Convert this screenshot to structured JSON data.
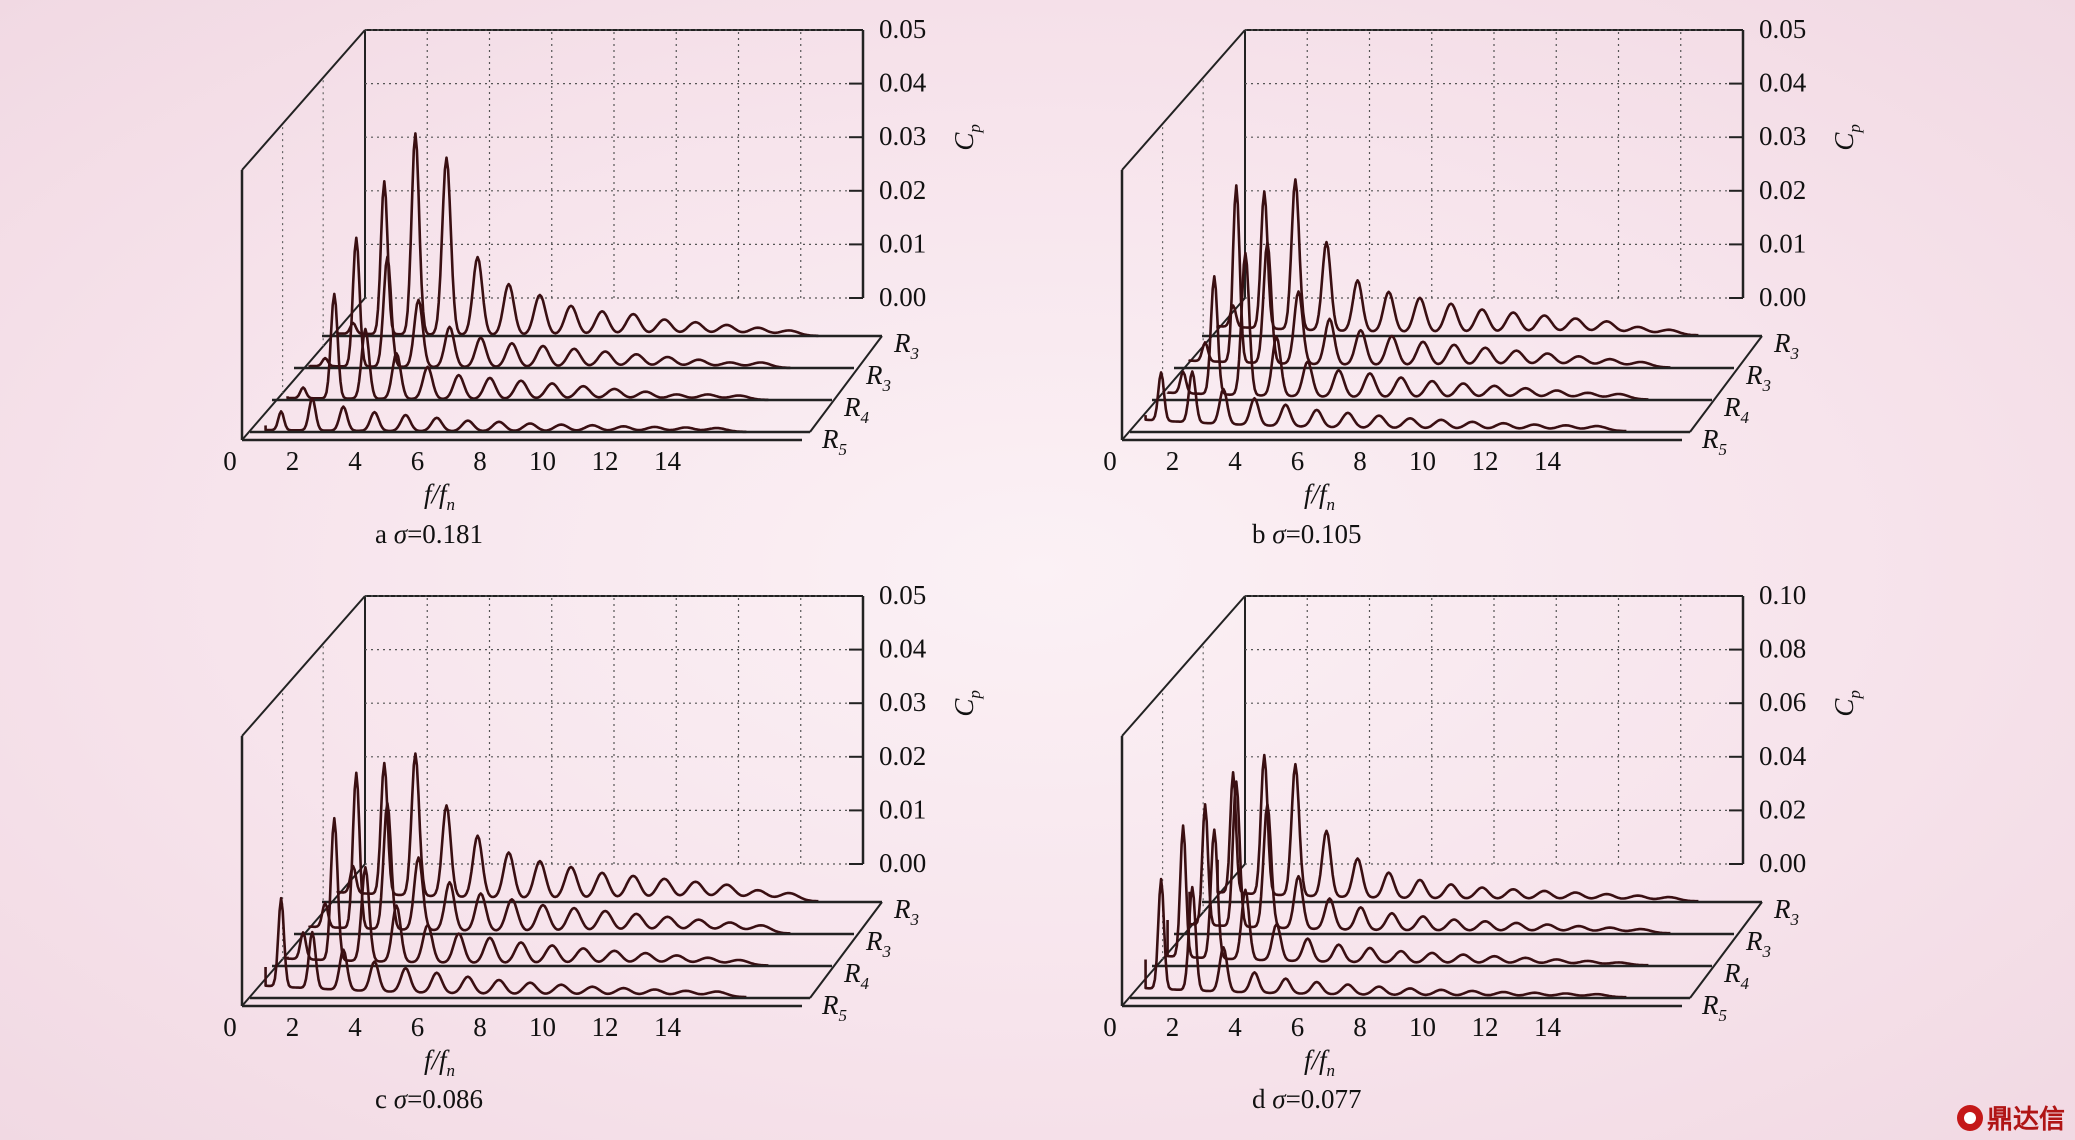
{
  "figure": {
    "watermark": "鼎达信"
  },
  "chart_data": [
    {
      "type": "line",
      "panel": "a",
      "caption_letter": "a",
      "caption_sigma": "σ=0.181",
      "xlabel": "f/f_n",
      "xlabel_main": "f/f",
      "xlabel_sub": "n",
      "ylabel": "C_p",
      "ylabel_main": "C",
      "ylabel_sub": "p",
      "x_ticks": [
        "0",
        "2",
        "4",
        "6",
        "8",
        "10",
        "12",
        "14"
      ],
      "y_ticks": [
        "0.00",
        "0.01",
        "0.02",
        "0.03",
        "0.04",
        "0.05"
      ],
      "ylim": [
        0,
        0.05
      ],
      "xlim": [
        0,
        16
      ],
      "series": [
        {
          "name": "R3",
          "label_main": "R",
          "label_sub": "3",
          "harmonics": [
            1,
            2,
            3,
            4,
            5,
            6,
            7,
            8,
            9,
            10,
            11,
            12,
            13,
            14,
            15
          ],
          "amplitudes": [
            0.002,
            0.0285,
            0.0375,
            0.033,
            0.0145,
            0.0095,
            0.0075,
            0.0055,
            0.0045,
            0.004,
            0.003,
            0.0025,
            0.002,
            0.0015,
            0.001
          ],
          "broadband": 0.0005
        },
        {
          "name": "R3",
          "label_main": "R",
          "label_sub": "3",
          "harmonics": [
            1,
            2,
            3,
            4,
            5,
            6,
            7,
            8,
            9,
            10,
            11,
            12,
            13,
            14,
            15
          ],
          "amplitudes": [
            0.0015,
            0.024,
            0.0205,
            0.0125,
            0.0075,
            0.0055,
            0.0045,
            0.004,
            0.0035,
            0.003,
            0.0025,
            0.002,
            0.0015,
            0.001,
            0.001
          ],
          "broadband": 0.0004
        },
        {
          "name": "R4",
          "label_main": "R",
          "label_sub": "4",
          "harmonics": [
            1,
            2,
            3,
            4,
            5,
            6,
            7,
            8,
            9,
            10,
            11,
            12,
            13,
            14,
            15
          ],
          "amplitudes": [
            0.002,
            0.0195,
            0.013,
            0.0085,
            0.006,
            0.0045,
            0.004,
            0.0035,
            0.003,
            0.0025,
            0.002,
            0.0015,
            0.001,
            0.001,
            0.0008
          ],
          "broadband": 0.0004
        },
        {
          "name": "R5",
          "label_main": "R",
          "label_sub": "5",
          "harmonics": [
            1,
            2,
            3,
            4,
            5,
            6,
            7,
            8,
            9,
            10,
            11,
            12,
            13,
            14,
            15
          ],
          "amplitudes": [
            0.0035,
            0.006,
            0.0045,
            0.0035,
            0.003,
            0.0025,
            0.002,
            0.0018,
            0.0015,
            0.0013,
            0.0012,
            0.001,
            0.0009,
            0.0008,
            0.0007
          ],
          "broadband": 0.0004
        }
      ]
    },
    {
      "type": "line",
      "panel": "b",
      "caption_letter": "b",
      "caption_sigma": "σ=0.105",
      "xlabel": "f/f_n",
      "xlabel_main": "f/f",
      "xlabel_sub": "n",
      "ylabel": "C_p",
      "ylabel_main": "C",
      "ylabel_sub": "p",
      "x_ticks": [
        "0",
        "2",
        "4",
        "6",
        "8",
        "10",
        "12",
        "14"
      ],
      "y_ticks": [
        "0.00",
        "0.01",
        "0.02",
        "0.03",
        "0.04",
        "0.05"
      ],
      "ylim": [
        0,
        0.05
      ],
      "xlim": [
        0,
        16
      ],
      "series": [
        {
          "name": "R3",
          "label_main": "R",
          "label_sub": "3",
          "harmonics": [
            1,
            2,
            3,
            4,
            5,
            6,
            7,
            8,
            9,
            10,
            11,
            12,
            13,
            14,
            15
          ],
          "amplitudes": [
            0.004,
            0.0255,
            0.028,
            0.0165,
            0.0095,
            0.0075,
            0.0065,
            0.0055,
            0.0045,
            0.004,
            0.0035,
            0.003,
            0.0025,
            0.0015,
            0.001
          ],
          "broadband": 0.002
        },
        {
          "name": "R3",
          "label_main": "R",
          "label_sub": "3",
          "harmonics": [
            1,
            2,
            3,
            4,
            5,
            6,
            7,
            8,
            9,
            10,
            11,
            12,
            13,
            14,
            15
          ],
          "amplitudes": [
            0.0035,
            0.033,
            0.0225,
            0.0135,
            0.0085,
            0.0065,
            0.0055,
            0.0045,
            0.004,
            0.0035,
            0.003,
            0.0025,
            0.002,
            0.0015,
            0.001
          ],
          "broadband": 0.0015
        },
        {
          "name": "R4",
          "label_main": "R",
          "label_sub": "4",
          "harmonics": [
            1,
            2,
            3,
            4,
            5,
            6,
            7,
            8,
            9,
            10,
            11,
            12,
            13,
            14,
            15
          ],
          "amplitudes": [
            0.004,
            0.022,
            0.0265,
            0.011,
            0.0065,
            0.005,
            0.0045,
            0.0038,
            0.0032,
            0.0028,
            0.0024,
            0.002,
            0.0016,
            0.0012,
            0.001
          ],
          "broadband": 0.0015
        },
        {
          "name": "R5",
          "label_main": "R",
          "label_sub": "5",
          "harmonics": [
            1,
            2,
            3,
            4,
            5,
            6,
            7,
            8,
            9,
            10,
            11,
            12,
            13,
            14,
            15
          ],
          "amplitudes": [
            0.009,
            0.0095,
            0.0065,
            0.005,
            0.004,
            0.0032,
            0.0028,
            0.0024,
            0.002,
            0.0018,
            0.0015,
            0.0013,
            0.0011,
            0.001,
            0.0009
          ],
          "broadband": 0.0025
        }
      ]
    },
    {
      "type": "line",
      "panel": "c",
      "caption_letter": "c",
      "caption_sigma": "σ=0.086",
      "xlabel": "f/f_n",
      "xlabel_main": "f/f",
      "xlabel_sub": "n",
      "ylabel": "C_p",
      "ylabel_main": "C",
      "ylabel_sub": "p",
      "x_ticks": [
        "0",
        "2",
        "4",
        "6",
        "8",
        "10",
        "12",
        "14"
      ],
      "y_ticks": [
        "0.00",
        "0.01",
        "0.02",
        "0.03",
        "0.04",
        "0.05"
      ],
      "ylim": [
        0,
        0.05
      ],
      "xlim": [
        0,
        16
      ],
      "series": [
        {
          "name": "R3",
          "label_main": "R",
          "label_sub": "3",
          "harmonics": [
            1,
            2,
            3,
            4,
            5,
            6,
            7,
            8,
            9,
            10,
            11,
            12,
            13,
            14,
            15
          ],
          "amplitudes": [
            0.005,
            0.0245,
            0.0265,
            0.017,
            0.0115,
            0.0085,
            0.007,
            0.006,
            0.005,
            0.0045,
            0.004,
            0.0035,
            0.003,
            0.002,
            0.0015
          ],
          "broadband": 0.002
        },
        {
          "name": "R3",
          "label_main": "R",
          "label_sub": "3",
          "harmonics": [
            1,
            2,
            3,
            4,
            5,
            6,
            7,
            8,
            9,
            10,
            11,
            12,
            13,
            14,
            15
          ],
          "amplitudes": [
            0.0045,
            0.029,
            0.0235,
            0.0135,
            0.009,
            0.007,
            0.006,
            0.005,
            0.0045,
            0.004,
            0.0035,
            0.003,
            0.0025,
            0.002,
            0.0015
          ],
          "broadband": 0.0015
        },
        {
          "name": "R4",
          "label_main": "R",
          "label_sub": "4",
          "harmonics": [
            1,
            2,
            3,
            4,
            5,
            6,
            7,
            8,
            9,
            10,
            11,
            12,
            13,
            14,
            15
          ],
          "amplitudes": [
            0.005,
            0.0265,
            0.0175,
            0.0105,
            0.007,
            0.0055,
            0.0048,
            0.004,
            0.0035,
            0.003,
            0.0026,
            0.0022,
            0.0018,
            0.0014,
            0.001
          ],
          "broadband": 0.0015
        },
        {
          "name": "R5",
          "label_main": "R",
          "label_sub": "5",
          "harmonics": [
            1,
            2,
            3,
            4,
            5,
            6,
            7,
            8,
            9,
            10,
            11,
            12,
            13,
            14,
            15
          ],
          "amplitudes": [
            0.0165,
            0.0105,
            0.0075,
            0.0055,
            0.0045,
            0.0038,
            0.0032,
            0.0027,
            0.0023,
            0.002,
            0.0017,
            0.0015,
            0.0013,
            0.0011,
            0.001
          ],
          "broadband": 0.0025
        }
      ]
    },
    {
      "type": "line",
      "panel": "d",
      "caption_letter": "d",
      "caption_sigma": "σ=0.077",
      "xlabel": "f/f_n",
      "xlabel_main": "f/f",
      "xlabel_sub": "n",
      "ylabel": "C_p",
      "ylabel_main": "C",
      "ylabel_sub": "p",
      "x_ticks": [
        "0",
        "2",
        "4",
        "6",
        "8",
        "10",
        "12",
        "14"
      ],
      "y_ticks": [
        "0.00",
        "0.02",
        "0.04",
        "0.06",
        "0.08",
        "0.10"
      ],
      "ylim": [
        0,
        0.1
      ],
      "xlim": [
        0,
        16
      ],
      "series": [
        {
          "name": "R3",
          "label_main": "R",
          "label_sub": "3",
          "harmonics": [
            1,
            2,
            3,
            4,
            5,
            6,
            7,
            8,
            9,
            10,
            11,
            12,
            13,
            14,
            15
          ],
          "amplitudes": [
            0.045,
            0.052,
            0.049,
            0.0245,
            0.0145,
            0.0095,
            0.007,
            0.0055,
            0.0045,
            0.004,
            0.0035,
            0.003,
            0.0025,
            0.002,
            0.0015
          ],
          "broadband": 0.004
        },
        {
          "name": "R3",
          "label_main": "R",
          "label_sub": "3",
          "harmonics": [
            1,
            2,
            3,
            4,
            5,
            6,
            7,
            8,
            9,
            10,
            11,
            12,
            13,
            14,
            15
          ],
          "amplitudes": [
            0.045,
            0.054,
            0.046,
            0.0195,
            0.0115,
            0.0085,
            0.0065,
            0.0055,
            0.0045,
            0.004,
            0.0035,
            0.003,
            0.0025,
            0.002,
            0.0015
          ],
          "broadband": 0.004
        },
        {
          "name": "R4",
          "label_main": "R",
          "label_sub": "4",
          "harmonics": [
            1,
            2,
            3,
            4,
            5,
            6,
            7,
            8,
            9,
            10,
            11,
            12,
            13,
            14,
            15
          ],
          "amplitudes": [
            0.049,
            0.048,
            0.026,
            0.0135,
            0.0085,
            0.0065,
            0.0055,
            0.0045,
            0.004,
            0.0035,
            0.003,
            0.0025,
            0.002,
            0.0015,
            0.001
          ],
          "broadband": 0.004
        },
        {
          "name": "R5",
          "label_main": "R",
          "label_sub": "5",
          "harmonics": [
            1,
            2,
            3,
            4,
            5,
            6,
            7,
            8,
            9,
            10,
            11,
            12,
            13,
            14,
            15
          ],
          "amplitudes": [
            0.041,
            0.0385,
            0.0165,
            0.0075,
            0.0055,
            0.0045,
            0.0038,
            0.0032,
            0.0027,
            0.0023,
            0.002,
            0.0017,
            0.0015,
            0.0013,
            0.0011
          ],
          "broadband": 0.004
        }
      ]
    }
  ]
}
